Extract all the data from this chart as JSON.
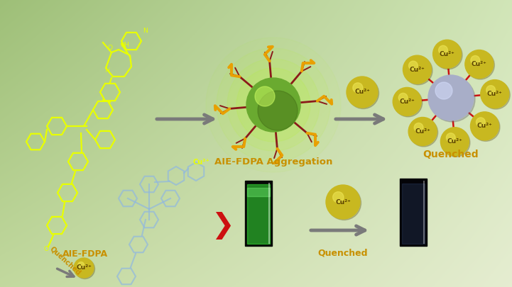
{
  "text_aie_fdpa": "AIE-FDPA",
  "text_aggregation": "AIE-FDPA Aggregation",
  "text_quenched_top": "Quenched",
  "text_quenched_bottom": "Quenched",
  "arrow_color": "#7a7a7a",
  "yc": "#e8ff00",
  "bc": "#90b8e0",
  "cu_ball_color": "#c8b820",
  "center_ball_color": "#a8aec8",
  "agg_ball_color": "#6aaa30",
  "lightning_color": "#e8a000",
  "branch_color": "#8b1a1a",
  "label_color": "#c89000",
  "red_chevron_color": "#cc1010",
  "bg_tl": [
    0.62,
    0.75,
    0.47
  ],
  "bg_tr": [
    0.82,
    0.9,
    0.72
  ],
  "bg_bl": [
    0.76,
    0.85,
    0.62
  ],
  "bg_br": [
    0.9,
    0.93,
    0.82
  ]
}
